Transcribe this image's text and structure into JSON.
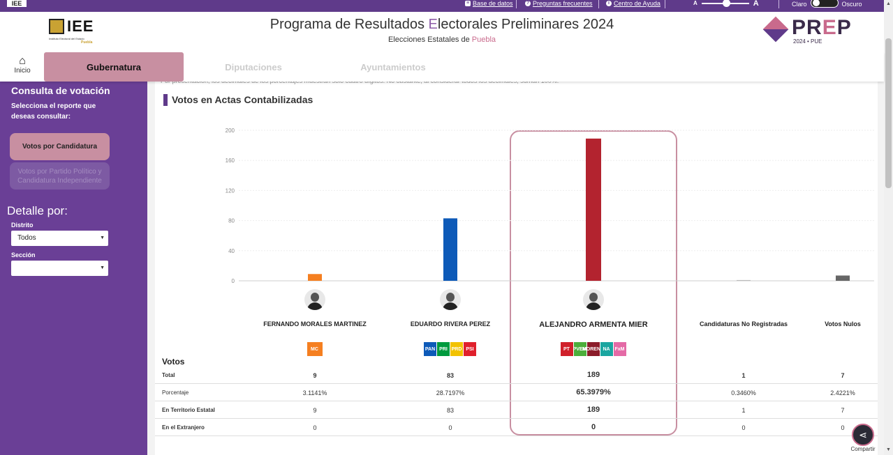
{
  "topbar": {
    "mini_logo": "IEE",
    "links": [
      {
        "label": "Base de datos",
        "icon": "database-icon"
      },
      {
        "label": "Preguntas frecuentes",
        "icon": "question-icon"
      },
      {
        "label": "Centro de Ayuda",
        "icon": "info-icon"
      }
    ],
    "font_small": "A",
    "font_large": "A",
    "theme_light": "Claro",
    "theme_dark": "Oscuro"
  },
  "header": {
    "logo_text": "IEE",
    "logo_subtext": "Instituto Electoral del Estado",
    "logo_subtext2": "Puebla",
    "title_part1": "Programa de Resultados ",
    "title_accent": "E",
    "title_part2": "lectorales Preliminares 2024",
    "subtitle_part1": "Elecciones Estatales de ",
    "subtitle_accent": "Puebla",
    "prep_p": "PR",
    "prep_e": "E",
    "prep_end": "P",
    "prep_year": "2024 • PUE"
  },
  "nav": {
    "home_label": "Inicio",
    "tabs": [
      "Gubernatura",
      "Diputaciones",
      "Ayuntamientos"
    ]
  },
  "sidebar": {
    "title": "Consulta de votación",
    "description": "Selecciona el reporte que deseas consultar:",
    "buttons": [
      "Votos por Candidatura",
      "Votos por Partido Político y Candidatura Independiente"
    ],
    "detail_title": "Detalle por:",
    "district_label": "Distrito",
    "district_value": "Todos",
    "section_label": "Sección",
    "section_value": ""
  },
  "content": {
    "cut_text": "Por presentación, los decimales de los porcentajes muestran sólo cuatro dígitos. No obstante, al considerar todos los decimales, suman 100%.",
    "section_title": "Votos en Actas Contabilizadas",
    "votos_label": "Votos",
    "row_labels": [
      "Total",
      "Porcentaje",
      "En Territorio Estatal",
      "En el Extranjero"
    ],
    "share_label": "Compartir"
  },
  "chart_data": {
    "type": "bar",
    "categories": [
      "FERNANDO MORALES MARTINEZ",
      "EDUARDO RIVERA PEREZ",
      "ALEJANDRO ARMENTA MIER",
      "Candidaturas No Registradas",
      "Votos Nulos"
    ],
    "values": [
      9,
      83,
      189,
      1,
      7
    ],
    "colors": [
      "#f57f20",
      "#0d5ab8",
      "#b3232f",
      "#bbbbbb",
      "#666666"
    ],
    "yticks": [
      0,
      40,
      80,
      120,
      160,
      200
    ],
    "ylim": [
      0,
      200
    ],
    "grid": true
  },
  "table": {
    "columns": [
      {
        "total": "9",
        "porcentaje": "3.1141%",
        "territorio": "9",
        "extranjero": "0"
      },
      {
        "total": "83",
        "porcentaje": "28.7197%",
        "territorio": "83",
        "extranjero": "0"
      },
      {
        "total": "189",
        "porcentaje": "65.3979%",
        "territorio": "189",
        "extranjero": "0"
      },
      {
        "total": "1",
        "porcentaje": "0.3460%",
        "territorio": "1",
        "extranjero": "0"
      },
      {
        "total": "7",
        "porcentaje": "2.4221%",
        "territorio": "7",
        "extranjero": "0"
      }
    ]
  },
  "party_logos": [
    [
      {
        "label": "MC",
        "color": "#f57f20"
      }
    ],
    [
      {
        "label": "PAN",
        "color": "#0d5ab8"
      },
      {
        "label": "PRI",
        "color": "#009a3e"
      },
      {
        "label": "PRD",
        "color": "#f2c200"
      },
      {
        "label": "PSI",
        "color": "#e0202c"
      }
    ],
    [
      {
        "label": "PT",
        "color": "#d0202a"
      },
      {
        "label": "PVEM",
        "color": "#4cae3b"
      },
      {
        "label": "MORENA",
        "color": "#8b1c2a"
      },
      {
        "label": "NA",
        "color": "#1aa6a0"
      },
      {
        "label": "FxM",
        "color": "#e46aa6"
      }
    ],
    [],
    []
  ]
}
